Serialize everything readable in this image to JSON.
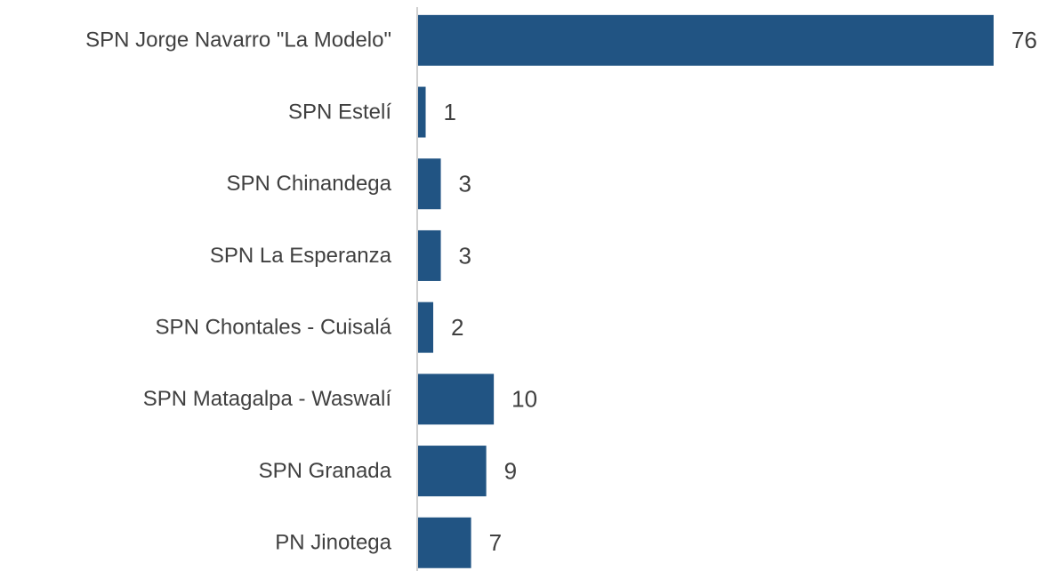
{
  "chart_data": {
    "type": "bar",
    "orientation": "horizontal",
    "categories": [
      "SPN Jorge Navarro \"La Modelo\"",
      "SPN Estelí",
      "SPN Chinandega",
      "SPN La Esperanza",
      "SPN Chontales - Cuisalá",
      "SPN Matagalpa - Waswalí",
      "SPN Granada",
      "PN Jinotega"
    ],
    "values": [
      76,
      1,
      3,
      3,
      2,
      10,
      9,
      7
    ],
    "color": "#215483"
  }
}
